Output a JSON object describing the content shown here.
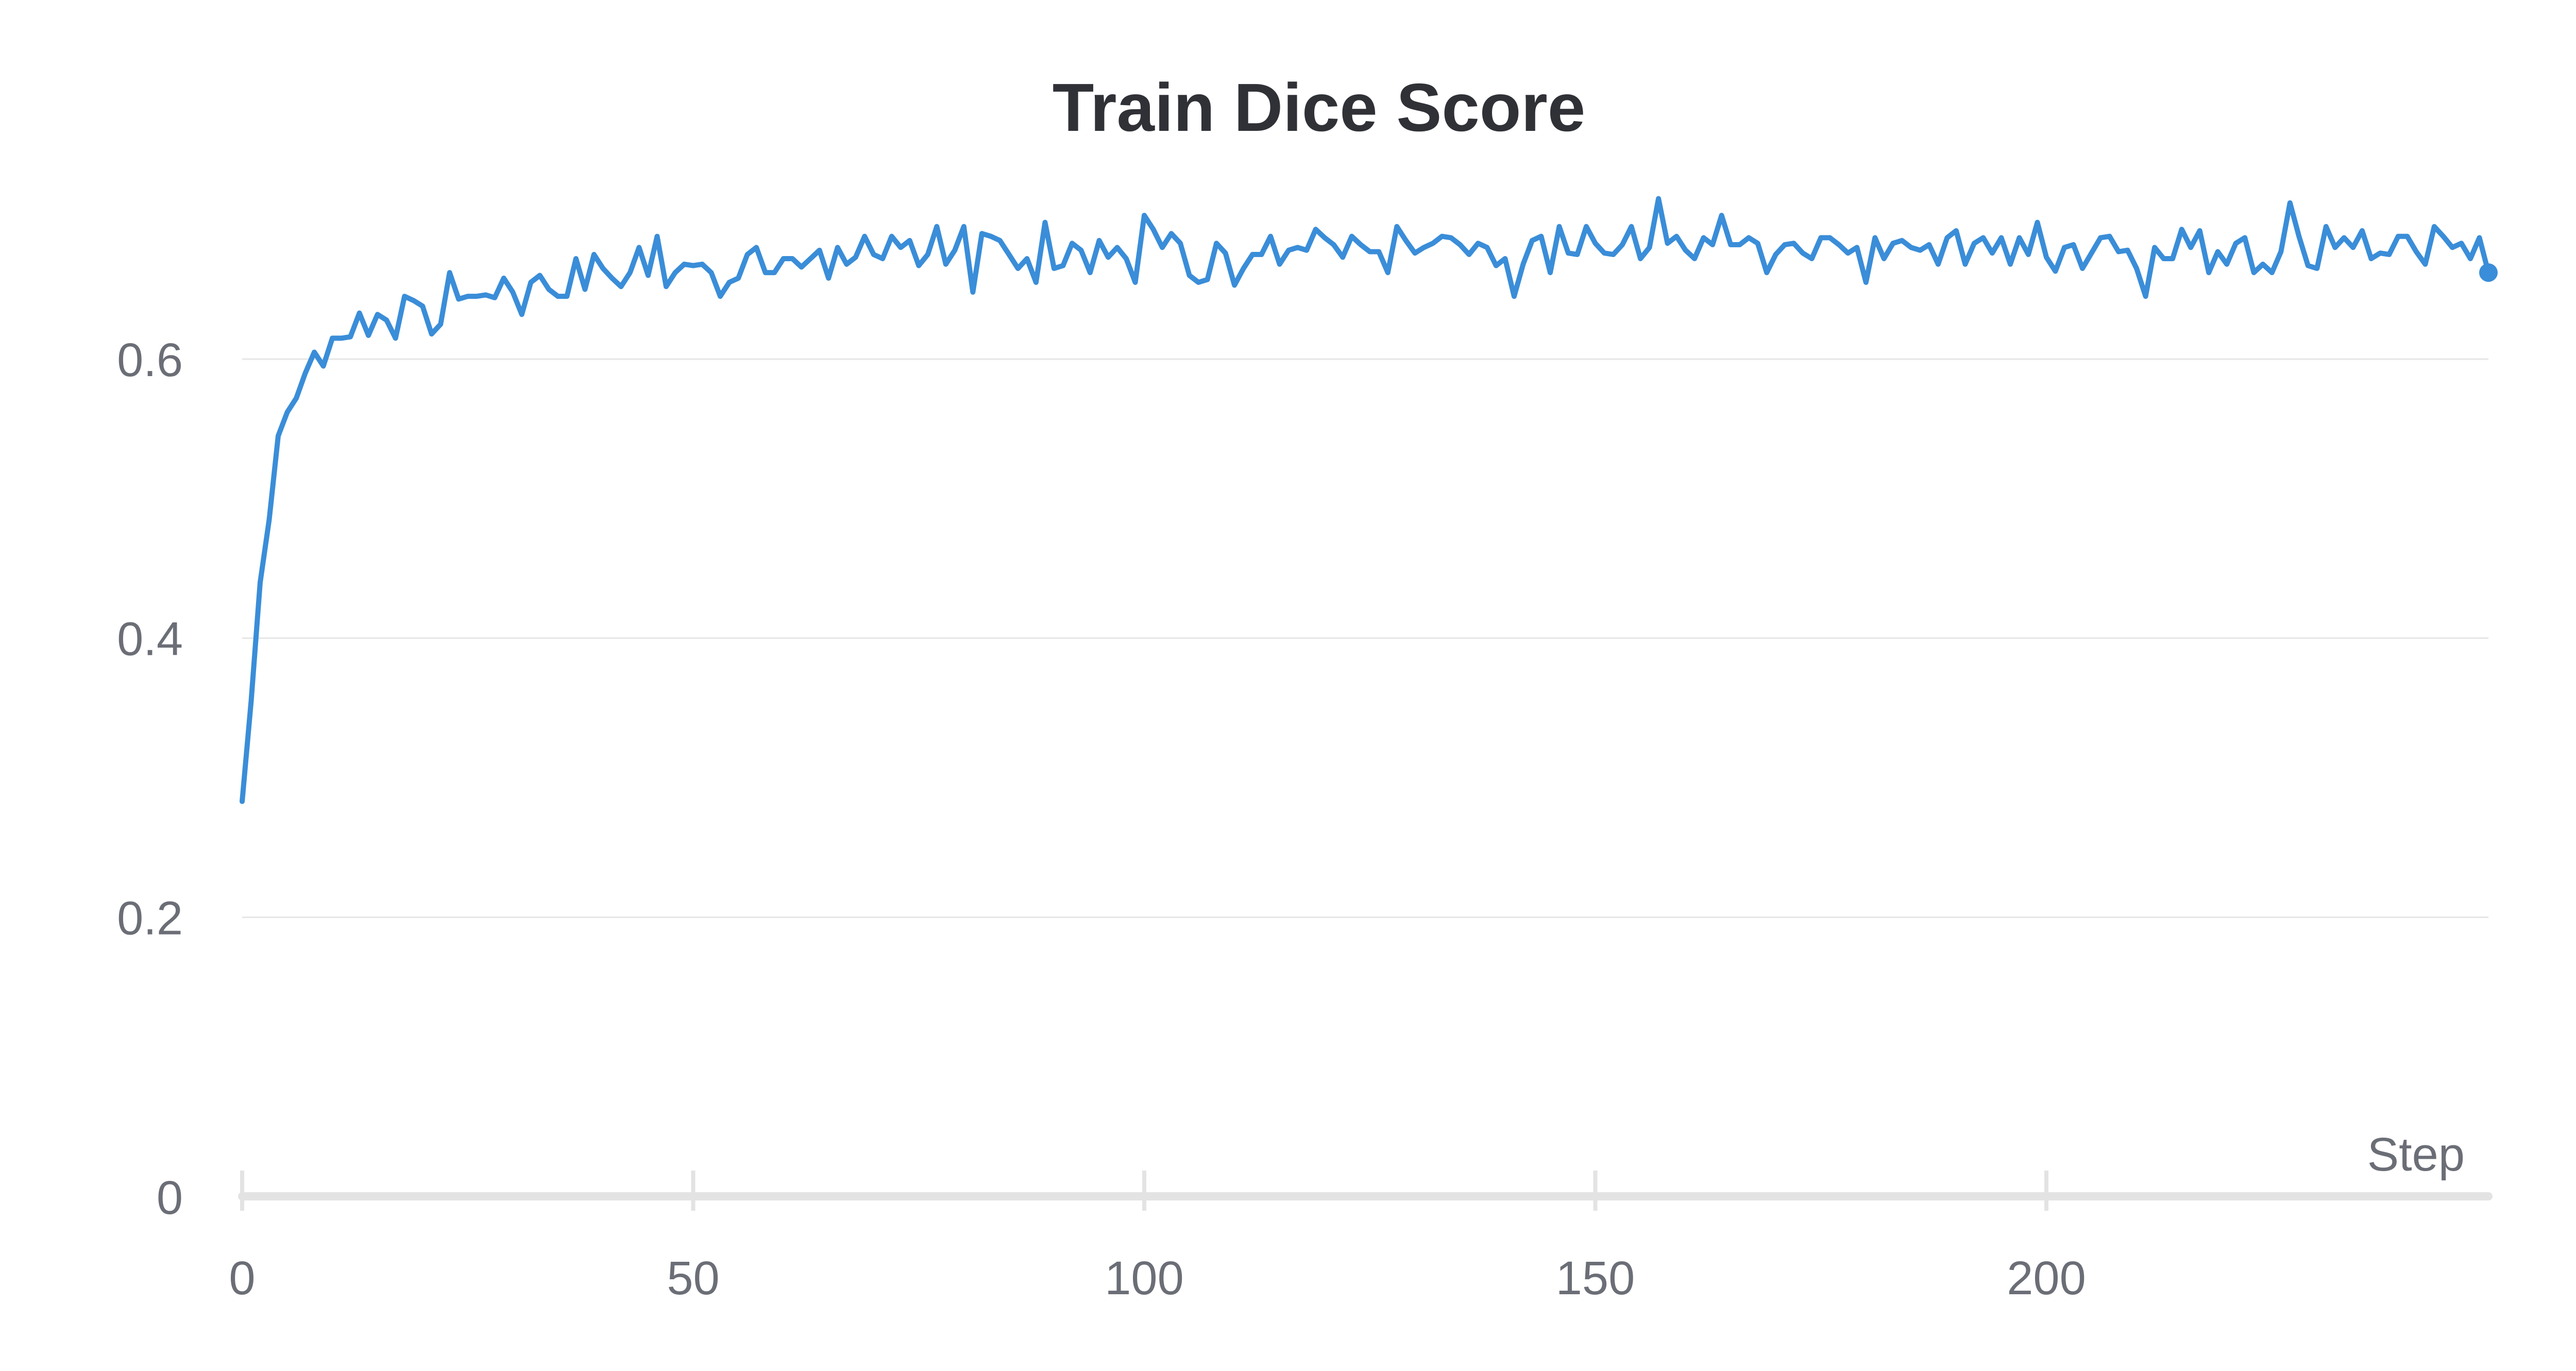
{
  "chart_data": {
    "type": "line",
    "title": "Train Dice Score",
    "xlabel": "Step",
    "ylabel": "",
    "xlim": [
      0,
      249
    ],
    "ylim": [
      0,
      0.72
    ],
    "xticks": [
      0,
      50,
      100,
      150,
      200
    ],
    "xtick_labels": [
      "0",
      "50",
      "100",
      "150",
      "200"
    ],
    "yticks": [
      0,
      0.2,
      0.4,
      0.6
    ],
    "ytick_labels": [
      "0",
      "0.2",
      "0.4",
      "0.6"
    ],
    "grid": true,
    "legend": "none",
    "colors": {
      "line": "#3a8dd8",
      "grid": "#e6e6e6",
      "axis": "#e3e3e3",
      "title": "#2f3136",
      "tick_label": "#6b6e76"
    },
    "series": [
      {
        "x": [
          0,
          1,
          2,
          3,
          4,
          5,
          6,
          7,
          8,
          9,
          10,
          11,
          12,
          13,
          14,
          15,
          16,
          17,
          18,
          19,
          20,
          21,
          22,
          23,
          24,
          25,
          26,
          27,
          28,
          29,
          30,
          31,
          32,
          33,
          34,
          35,
          36,
          37,
          38,
          39,
          40,
          41,
          42,
          43,
          44,
          45,
          46,
          47,
          48,
          49,
          50,
          51,
          52,
          53,
          54,
          55,
          56,
          57,
          58,
          59,
          60,
          61,
          62,
          63,
          64,
          65,
          66,
          67,
          68,
          69,
          70,
          71,
          72,
          73,
          74,
          75,
          76,
          77,
          78,
          79,
          80,
          81,
          82,
          83,
          84,
          85,
          86,
          87,
          88,
          89,
          90,
          91,
          92,
          93,
          94,
          95,
          96,
          97,
          98,
          99,
          100,
          101,
          102,
          103,
          104,
          105,
          106,
          107,
          108,
          109,
          110,
          111,
          112,
          113,
          114,
          115,
          116,
          117,
          118,
          119,
          120,
          121,
          122,
          123,
          124,
          125,
          126,
          127,
          128,
          129,
          130,
          131,
          132,
          133,
          134,
          135,
          136,
          137,
          138,
          139,
          140,
          141,
          142,
          143,
          144,
          145,
          146,
          147,
          148,
          149,
          150,
          151,
          152,
          153,
          154,
          155,
          156,
          157,
          158,
          159,
          160,
          161,
          162,
          163,
          164,
          165,
          166,
          167,
          168,
          169,
          170,
          171,
          172,
          173,
          174,
          175,
          176,
          177,
          178,
          179,
          180,
          181,
          182,
          183,
          184,
          185,
          186,
          187,
          188,
          189,
          190,
          191,
          192,
          193,
          194,
          195,
          196,
          197,
          198,
          199,
          200,
          201,
          202,
          203,
          204,
          205,
          206,
          207,
          208,
          209,
          210,
          211,
          212,
          213,
          214,
          215,
          216,
          217,
          218,
          219,
          220,
          221,
          222,
          223,
          224,
          225,
          226,
          227,
          228,
          229,
          230,
          231,
          232,
          233,
          234,
          235,
          236,
          237,
          238,
          239,
          240,
          241,
          242,
          243,
          244,
          245,
          246,
          247,
          248,
          249
        ],
        "y": [
          0.283,
          0.355,
          0.44,
          0.485,
          0.545,
          0.562,
          0.572,
          0.59,
          0.605,
          0.595,
          0.615,
          0.615,
          0.616,
          0.633,
          0.617,
          0.632,
          0.628,
          0.615,
          0.645,
          0.642,
          0.638,
          0.618,
          0.625,
          0.662,
          0.643,
          0.645,
          0.645,
          0.646,
          0.644,
          0.658,
          0.648,
          0.632,
          0.655,
          0.66,
          0.65,
          0.645,
          0.645,
          0.672,
          0.65,
          0.675,
          0.665,
          0.658,
          0.652,
          0.662,
          0.68,
          0.66,
          0.688,
          0.652,
          0.662,
          0.668,
          0.667,
          0.668,
          0.662,
          0.645,
          0.655,
          0.658,
          0.675,
          0.68,
          0.662,
          0.662,
          0.672,
          0.672,
          0.666,
          0.672,
          0.678,
          0.658,
          0.68,
          0.668,
          0.673,
          0.688,
          0.675,
          0.672,
          0.688,
          0.68,
          0.685,
          0.667,
          0.675,
          0.695,
          0.668,
          0.678,
          0.695,
          0.648,
          0.69,
          0.688,
          0.685,
          0.675,
          0.665,
          0.672,
          0.655,
          0.698,
          0.665,
          0.667,
          0.683,
          0.678,
          0.662,
          0.685,
          0.673,
          0.68,
          0.672,
          0.655,
          0.703,
          0.693,
          0.68,
          0.69,
          0.683,
          0.66,
          0.655,
          0.657,
          0.683,
          0.676,
          0.653,
          0.665,
          0.675,
          0.675,
          0.688,
          0.668,
          0.678,
          0.68,
          0.678,
          0.693,
          0.687,
          0.682,
          0.673,
          0.688,
          0.682,
          0.677,
          0.677,
          0.662,
          0.695,
          0.685,
          0.676,
          0.68,
          0.683,
          0.688,
          0.687,
          0.682,
          0.675,
          0.683,
          0.68,
          0.667,
          0.672,
          0.645,
          0.668,
          0.685,
          0.688,
          0.662,
          0.695,
          0.676,
          0.675,
          0.695,
          0.683,
          0.676,
          0.675,
          0.682,
          0.695,
          0.672,
          0.68,
          0.715,
          0.683,
          0.688,
          0.678,
          0.672,
          0.687,
          0.682,
          0.703,
          0.682,
          0.682,
          0.687,
          0.683,
          0.662,
          0.675,
          0.682,
          0.683,
          0.676,
          0.672,
          0.687,
          0.687,
          0.682,
          0.676,
          0.68,
          0.655,
          0.687,
          0.672,
          0.683,
          0.685,
          0.68,
          0.678,
          0.682,
          0.668,
          0.687,
          0.692,
          0.668,
          0.683,
          0.687,
          0.676,
          0.687,
          0.668,
          0.687,
          0.675,
          0.698,
          0.673,
          0.663,
          0.68,
          0.682,
          0.665,
          0.676,
          0.687,
          0.688,
          0.677,
          0.678,
          0.665,
          0.645,
          0.68,
          0.672,
          0.672,
          0.693,
          0.68,
          0.692,
          0.662,
          0.677,
          0.668,
          0.683,
          0.687,
          0.662,
          0.668,
          0.662,
          0.677,
          0.712,
          0.688,
          0.667,
          0.665,
          0.695,
          0.68,
          0.687,
          0.68,
          0.692,
          0.672,
          0.676,
          0.675,
          0.688,
          0.688,
          0.677,
          0.668,
          0.695,
          0.688,
          0.68,
          0.683,
          0.672,
          0.687,
          0.662
        ]
      }
    ]
  }
}
